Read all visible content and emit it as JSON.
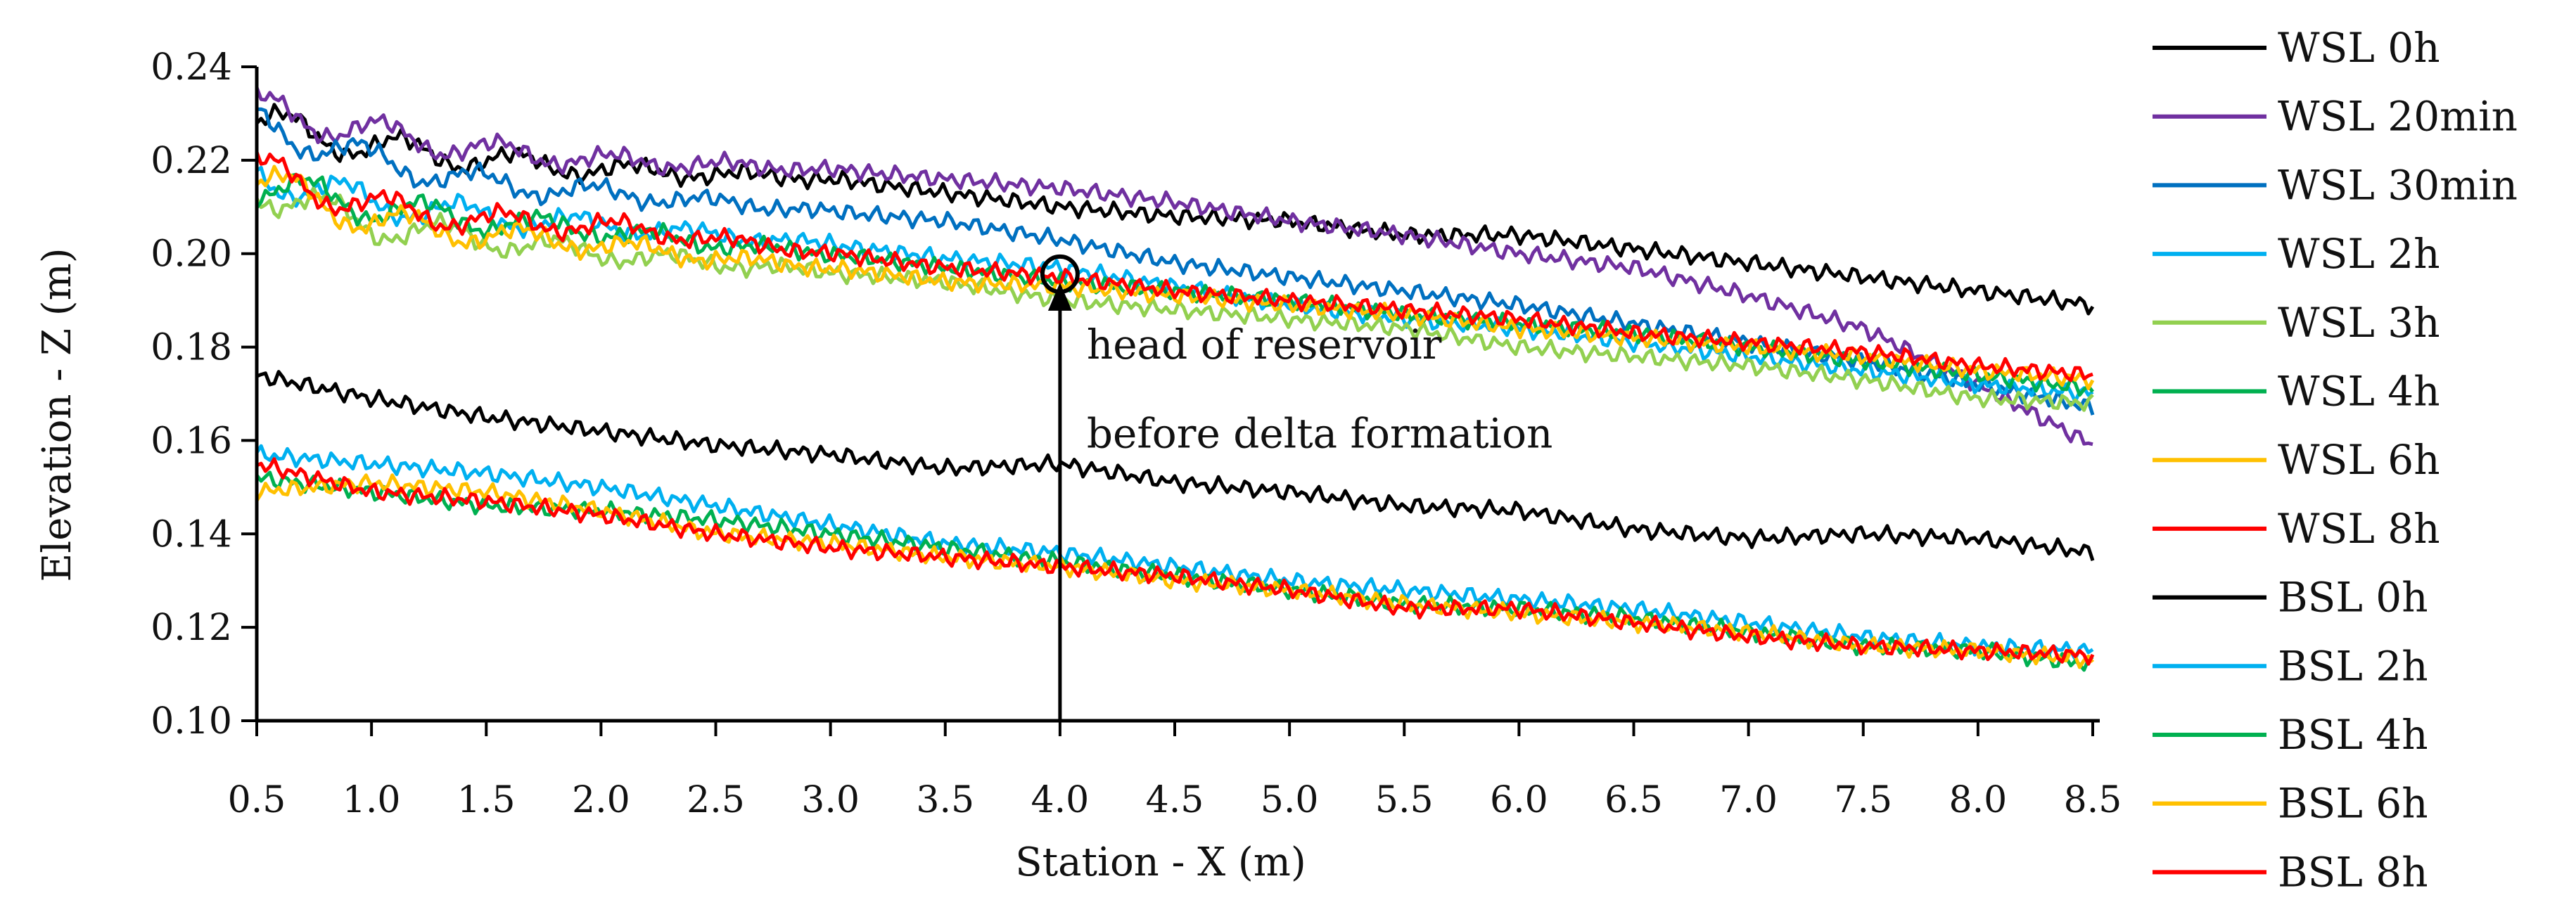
{
  "chart_data": {
    "type": "line",
    "title": "",
    "xlabel": "Station - X (m)",
    "ylabel": "Elevation - Z (m)",
    "xlim": [
      0.5,
      8.5
    ],
    "ylim": [
      0.1,
      0.24
    ],
    "x_ticks": [
      0.5,
      1.0,
      1.5,
      2.0,
      2.5,
      3.0,
      3.5,
      4.0,
      4.5,
      5.0,
      5.5,
      6.0,
      6.5,
      7.0,
      7.5,
      8.0,
      8.5
    ],
    "x_tick_labels": [
      "0.5",
      "1.0",
      "1.5",
      "2.0",
      "2.5",
      "3.0",
      "3.5",
      "4.0",
      "4.5",
      "5.0",
      "5.5",
      "6.0",
      "6.5",
      "7.0",
      "7.5",
      "8.0",
      "8.5"
    ],
    "y_ticks": [
      0.1,
      0.12,
      0.14,
      0.16,
      0.18,
      0.2,
      0.22,
      0.24
    ],
    "y_tick_labels": [
      "0.10",
      "0.12",
      "0.14",
      "0.16",
      "0.18",
      "0.20",
      "0.22",
      "0.24"
    ],
    "grid": false,
    "legend_position": "right",
    "series": [
      {
        "name": "WSL 0h",
        "color": "#000000",
        "x": [
          0.5,
          1.0,
          1.5,
          2.0,
          2.5,
          3.0,
          3.5,
          4.0,
          4.5,
          5.0,
          5.5,
          6.0,
          6.5,
          7.0,
          7.5,
          8.0,
          8.5
        ],
        "values": [
          0.228,
          0.223,
          0.22,
          0.218,
          0.217,
          0.216,
          0.213,
          0.21,
          0.208,
          0.207,
          0.204,
          0.204,
          0.201,
          0.198,
          0.195,
          0.192,
          0.189
        ]
      },
      {
        "name": "WSL 20min",
        "color": "#7030A0",
        "x": [
          0.5,
          1.0,
          1.5,
          2.0,
          2.5,
          3.0,
          3.5,
          4.0,
          4.5,
          5.0,
          5.5,
          6.0,
          6.5,
          7.0,
          7.5,
          8.0,
          8.5
        ],
        "values": [
          0.231,
          0.226,
          0.222,
          0.22,
          0.219,
          0.218,
          0.216,
          0.214,
          0.211,
          0.207,
          0.204,
          0.2,
          0.197,
          0.191,
          0.184,
          0.172,
          0.159
        ]
      },
      {
        "name": "WSL 30min",
        "color": "#0070C0",
        "x": [
          0.5,
          1.0,
          1.5,
          2.0,
          2.5,
          3.0,
          3.5,
          4.0,
          4.5,
          5.0,
          5.5,
          6.0,
          6.5,
          7.0,
          7.5,
          8.0,
          8.5
        ],
        "values": [
          0.228,
          0.22,
          0.215,
          0.213,
          0.211,
          0.209,
          0.207,
          0.203,
          0.198,
          0.195,
          0.192,
          0.189,
          0.185,
          0.181,
          0.177,
          0.172,
          0.167
        ]
      },
      {
        "name": "WSL 2h",
        "color": "#00B0F0",
        "x": [
          0.5,
          1.0,
          1.5,
          2.0,
          2.5,
          3.0,
          3.5,
          4.0,
          4.5,
          5.0,
          5.5,
          6.0,
          6.5,
          7.0,
          7.5,
          8.0,
          8.5
        ],
        "values": [
          0.217,
          0.211,
          0.208,
          0.206,
          0.204,
          0.202,
          0.199,
          0.197,
          0.193,
          0.189,
          0.186,
          0.184,
          0.181,
          0.178,
          0.175,
          0.172,
          0.17
        ]
      },
      {
        "name": "WSL 3h",
        "color": "#92D050",
        "x": [
          0.5,
          1.0,
          1.5,
          2.0,
          2.5,
          3.0,
          3.5,
          4.0,
          4.5,
          5.0,
          5.5,
          6.0,
          6.5,
          7.0,
          7.5,
          8.0,
          8.5
        ],
        "values": [
          0.214,
          0.206,
          0.203,
          0.2,
          0.198,
          0.196,
          0.194,
          0.19,
          0.188,
          0.186,
          0.184,
          0.18,
          0.178,
          0.176,
          0.173,
          0.169,
          0.168
        ]
      },
      {
        "name": "WSL 4h",
        "color": "#00B050",
        "x": [
          0.5,
          1.0,
          1.5,
          2.0,
          2.5,
          3.0,
          3.5,
          4.0,
          4.5,
          5.0,
          5.5,
          6.0,
          6.5,
          7.0,
          7.5,
          8.0,
          8.5
        ],
        "values": [
          0.215,
          0.21,
          0.207,
          0.205,
          0.202,
          0.2,
          0.197,
          0.194,
          0.192,
          0.19,
          0.187,
          0.185,
          0.183,
          0.18,
          0.177,
          0.174,
          0.171
        ]
      },
      {
        "name": "WSL 6h",
        "color": "#FFC000",
        "x": [
          0.5,
          1.0,
          1.5,
          2.0,
          2.5,
          3.0,
          3.5,
          4.0,
          4.5,
          5.0,
          5.5,
          6.0,
          6.5,
          7.0,
          7.5,
          8.0,
          8.5
        ],
        "values": [
          0.216,
          0.207,
          0.204,
          0.202,
          0.199,
          0.197,
          0.194,
          0.193,
          0.191,
          0.189,
          0.187,
          0.184,
          0.182,
          0.18,
          0.178,
          0.175,
          0.173
        ]
      },
      {
        "name": "WSL 8h",
        "color": "#FF0000",
        "x": [
          0.5,
          1.0,
          1.5,
          2.0,
          2.5,
          3.0,
          3.5,
          4.0,
          4.5,
          5.0,
          5.5,
          6.0,
          6.5,
          7.0,
          7.5,
          8.0,
          8.5
        ],
        "values": [
          0.218,
          0.21,
          0.207,
          0.206,
          0.203,
          0.2,
          0.197,
          0.195,
          0.192,
          0.19,
          0.188,
          0.186,
          0.183,
          0.181,
          0.179,
          0.176,
          0.174
        ]
      },
      {
        "name": "BSL 0h",
        "color": "#000000",
        "x": [
          0.5,
          1.0,
          1.5,
          2.0,
          2.5,
          3.0,
          3.5,
          4.0,
          4.5,
          5.0,
          5.5,
          6.0,
          6.5,
          7.0,
          7.5,
          8.0,
          8.5
        ],
        "values": [
          0.174,
          0.169,
          0.165,
          0.162,
          0.159,
          0.157,
          0.154,
          0.155,
          0.151,
          0.149,
          0.146,
          0.145,
          0.141,
          0.139,
          0.14,
          0.139,
          0.136
        ]
      },
      {
        "name": "BSL 2h",
        "color": "#00B0F0",
        "x": [
          0.5,
          1.0,
          1.5,
          2.0,
          2.5,
          3.0,
          3.5,
          4.0,
          4.5,
          5.0,
          5.5,
          6.0,
          6.5,
          7.0,
          7.5,
          8.0,
          8.5
        ],
        "values": [
          0.157,
          0.155,
          0.153,
          0.15,
          0.146,
          0.142,
          0.138,
          0.136,
          0.133,
          0.13,
          0.128,
          0.126,
          0.124,
          0.121,
          0.118,
          0.116,
          0.115
        ]
      },
      {
        "name": "BSL 4h",
        "color": "#00B050",
        "x": [
          0.5,
          1.0,
          1.5,
          2.0,
          2.5,
          3.0,
          3.5,
          4.0,
          4.5,
          5.0,
          5.5,
          6.0,
          6.5,
          7.0,
          7.5,
          8.0,
          8.5
        ],
        "values": [
          0.152,
          0.149,
          0.146,
          0.145,
          0.143,
          0.14,
          0.137,
          0.134,
          0.131,
          0.128,
          0.125,
          0.124,
          0.122,
          0.119,
          0.116,
          0.115,
          0.112
        ]
      },
      {
        "name": "BSL 6h",
        "color": "#FFC000",
        "x": [
          0.5,
          1.0,
          1.5,
          2.0,
          2.5,
          3.0,
          3.5,
          4.0,
          4.5,
          5.0,
          5.5,
          6.0,
          6.5,
          7.0,
          7.5,
          8.0,
          8.5
        ],
        "values": [
          0.149,
          0.151,
          0.149,
          0.145,
          0.14,
          0.138,
          0.135,
          0.133,
          0.13,
          0.128,
          0.125,
          0.123,
          0.121,
          0.119,
          0.116,
          0.115,
          0.113
        ]
      },
      {
        "name": "BSL 8h",
        "color": "#FF0000",
        "x": [
          0.5,
          1.0,
          1.5,
          2.0,
          2.5,
          3.0,
          3.5,
          4.0,
          4.5,
          5.0,
          5.5,
          6.0,
          6.5,
          7.0,
          7.5,
          8.0,
          8.5
        ],
        "values": [
          0.155,
          0.149,
          0.147,
          0.144,
          0.14,
          0.137,
          0.135,
          0.133,
          0.131,
          0.128,
          0.124,
          0.124,
          0.121,
          0.118,
          0.116,
          0.115,
          0.114
        ]
      }
    ],
    "annotation": {
      "lines": [
        "head of reservoir",
        "before delta formation"
      ],
      "x": 4.0,
      "y_marker": 0.195,
      "y_base": 0.1
    }
  }
}
